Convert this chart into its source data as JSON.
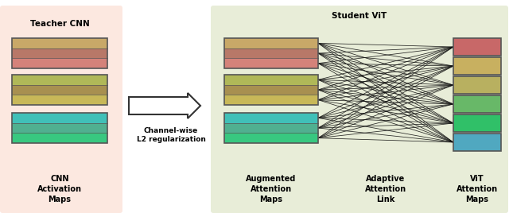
{
  "teacher_bg": "#fce8e0",
  "student_bg": "#e8edd8",
  "teacher_title": "Teacher CNN",
  "student_title": "Student ViT",
  "cnn_label": "CNN\nActivation\nMaps",
  "aug_label": "Augmented\nAttention\nMaps",
  "adaptive_label": "Adaptive\nAttention\nLink",
  "vit_label": "ViT\nAttention\nMaps",
  "arrow_label": "Channel-wise\nL2 regularization",
  "teacher_groups": [
    [
      "#d4827a",
      "#b87868",
      "#c8a868"
    ],
    [
      "#c8b858",
      "#a89050",
      "#b0b858"
    ],
    [
      "#38c880",
      "#50b090",
      "#40c0b8"
    ]
  ],
  "augmented_groups": [
    [
      "#d4827a",
      "#b87868",
      "#c8a868"
    ],
    [
      "#c8b858",
      "#a89050",
      "#b0b858"
    ],
    [
      "#38c880",
      "#50b090",
      "#40c0b8"
    ]
  ],
  "vit_maps": [
    "#c86868",
    "#c8b060",
    "#b8b060",
    "#68b868",
    "#30c068",
    "#50a8c0"
  ],
  "line_color": "#111111",
  "border_color": "#555555"
}
